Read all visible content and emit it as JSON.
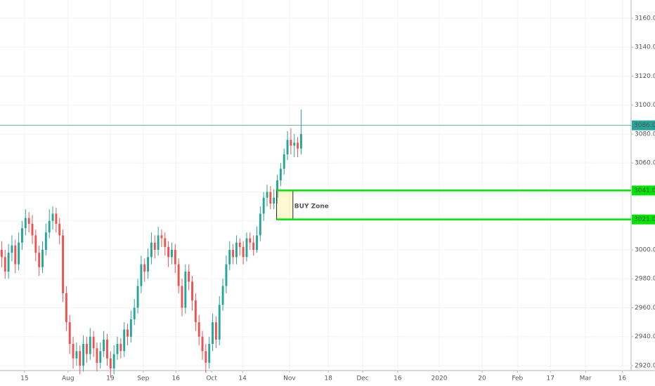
{
  "chart_data": {
    "type": "candlestick",
    "x": [
      0,
      1,
      2,
      3,
      4,
      5,
      6,
      7,
      8,
      9,
      10,
      11,
      12,
      13,
      14,
      15,
      16,
      17,
      18,
      19,
      20,
      21,
      22,
      23,
      24,
      25,
      26,
      27,
      28,
      29,
      30,
      31,
      32,
      33,
      34,
      35,
      36,
      37,
      38,
      39,
      40,
      41,
      42,
      43,
      44,
      45,
      46,
      47,
      48,
      49,
      50,
      51,
      52,
      53,
      54,
      55,
      56,
      57,
      58,
      59,
      60,
      61,
      62,
      63,
      64,
      65,
      66,
      67,
      68,
      69,
      70,
      71,
      72,
      73,
      74,
      75,
      76,
      77,
      78,
      79,
      80,
      81,
      82,
      83,
      84,
      85,
      86,
      87,
      88
    ],
    "open": [
      3000,
      2995,
      2985,
      2998,
      3003,
      2990,
      3005,
      3015,
      3022,
      3018,
      3010,
      2998,
      2988,
      3000,
      3012,
      3020,
      3025,
      3018,
      3010,
      2970,
      2950,
      2935,
      2925,
      2930,
      2920,
      2935,
      2928,
      2940,
      2932,
      2922,
      2930,
      2938,
      2925,
      2918,
      2928,
      2935,
      2930,
      2945,
      2940,
      2952,
      2960,
      2975,
      2990,
      2985,
      2995,
      3005,
      3000,
      3010,
      3008,
      3002,
      2995,
      3000,
      2990,
      2975,
      2960,
      2985,
      2978,
      2965,
      2950,
      2940,
      2930,
      2922,
      2935,
      2950,
      2938,
      2962,
      2975,
      2990,
      3000,
      2995,
      3005,
      3002,
      2995,
      3008,
      3005,
      3000,
      3010,
      3025,
      3036,
      3040,
      3032,
      3036,
      3048,
      3056,
      3066,
      3076,
      3072,
      3074,
      3070
    ],
    "high": [
      3006,
      3000,
      3004,
      3010,
      3007,
      3012,
      3020,
      3028,
      3026,
      3024,
      3014,
      3003,
      3006,
      3018,
      3028,
      3030,
      3029,
      3022,
      3014,
      2975,
      2955,
      2940,
      2936,
      2934,
      2941,
      2940,
      2946,
      2944,
      2936,
      2936,
      2944,
      2942,
      2930,
      2934,
      2940,
      2939,
      2950,
      2949,
      2958,
      2966,
      2980,
      2996,
      2994,
      3001,
      3012,
      3010,
      3016,
      3014,
      3012,
      3006,
      3005,
      3004,
      2994,
      2980,
      2990,
      2990,
      2982,
      2970,
      2955,
      2944,
      2935,
      2940,
      2956,
      2954,
      2968,
      2980,
      2996,
      3006,
      3004,
      3010,
      3008,
      3006,
      3012,
      3012,
      3010,
      3016,
      3030,
      3040,
      3045,
      3044,
      3042,
      3052,
      3060,
      3070,
      3082,
      3084,
      3080,
      3078,
      3097
    ],
    "low": [
      2988,
      2980,
      2980,
      2992,
      2984,
      2986,
      3000,
      3010,
      3012,
      3004,
      2992,
      2982,
      2984,
      2996,
      3008,
      3014,
      3012,
      3004,
      2964,
      2944,
      2928,
      2918,
      2920,
      2914,
      2916,
      2922,
      2924,
      2926,
      2916,
      2918,
      2926,
      2920,
      2912,
      2914,
      2924,
      2925,
      2926,
      2934,
      2936,
      2948,
      2956,
      2970,
      2978,
      2980,
      2990,
      2994,
      2996,
      3002,
      2996,
      2988,
      2990,
      2984,
      2970,
      2954,
      2956,
      2972,
      2958,
      2944,
      2934,
      2924,
      2915,
      2918,
      2930,
      2932,
      2934,
      2958,
      2970,
      2986,
      2990,
      2990,
      2996,
      2990,
      2992,
      3000,
      2996,
      2998,
      3006,
      3020,
      3030,
      3028,
      3028,
      3032,
      3044,
      3052,
      3062,
      3066,
      3064,
      3064,
      3066
    ],
    "close": [
      2995,
      2985,
      2998,
      3003,
      2990,
      3005,
      3015,
      3022,
      3018,
      3010,
      2998,
      2988,
      3000,
      3012,
      3020,
      3025,
      3018,
      3010,
      2970,
      2950,
      2935,
      2925,
      2930,
      2920,
      2935,
      2928,
      2940,
      2932,
      2922,
      2930,
      2938,
      2925,
      2918,
      2928,
      2935,
      2930,
      2945,
      2940,
      2952,
      2960,
      2975,
      2990,
      2985,
      2995,
      3005,
      3000,
      3010,
      3008,
      3002,
      2995,
      3000,
      2990,
      2975,
      2960,
      2985,
      2978,
      2965,
      2950,
      2940,
      2930,
      2922,
      2935,
      2950,
      2938,
      2962,
      2975,
      2990,
      3000,
      2995,
      3005,
      3002,
      2995,
      3008,
      3005,
      3000,
      3010,
      3025,
      3036,
      3040,
      3032,
      3036,
      3048,
      3056,
      3066,
      3076,
      3072,
      3074,
      3070,
      3080
    ],
    "up_color": "#26a69a",
    "down_color": "#ef5350",
    "xlim": [
      -0.5,
      185
    ],
    "xticks": [
      {
        "value": 6.7,
        "label": "15"
      },
      {
        "value": 19.5,
        "label": "Aug"
      },
      {
        "value": 31.9,
        "label": "19"
      },
      {
        "value": 41.6,
        "label": "Sep"
      },
      {
        "value": 51.2,
        "label": "16"
      },
      {
        "value": 61.7,
        "label": "Oct"
      },
      {
        "value": 70.8,
        "label": "14"
      },
      {
        "value": 84.6,
        "label": "Nov"
      },
      {
        "value": 96,
        "label": "18"
      },
      {
        "value": 106.1,
        "label": "Dec"
      },
      {
        "value": 116.4,
        "label": "16"
      },
      {
        "value": 128.6,
        "label": "2020"
      },
      {
        "value": 141.2,
        "label": "20"
      },
      {
        "value": 151.6,
        "label": "Feb"
      },
      {
        "value": 161.3,
        "label": "17"
      },
      {
        "value": 171.6,
        "label": "Mar"
      },
      {
        "value": 182.4,
        "label": "16"
      }
    ],
    "ylim": [
      2916.6,
      3172.6
    ],
    "yticks": [
      {
        "value": 2920,
        "label": "2920.00"
      },
      {
        "value": 2940,
        "label": "2940.00"
      },
      {
        "value": 2960,
        "label": "2960.00"
      },
      {
        "value": 2980,
        "label": "2980.00"
      },
      {
        "value": 3000,
        "label": "3000.00"
      },
      {
        "value": 3020,
        "label": "3020.00"
      },
      {
        "value": 3040,
        "label": "3040.00"
      },
      {
        "value": 3060,
        "label": "3060.00"
      },
      {
        "value": 3080,
        "label": "3080.00"
      },
      {
        "value": 3100,
        "label": "3100.00"
      },
      {
        "value": 3120,
        "label": "3120.00"
      },
      {
        "value": 3140,
        "label": "3140.00"
      },
      {
        "value": 3160,
        "label": "3160.00"
      }
    ],
    "grid": true,
    "price_line": {
      "value": 3086,
      "label": "3086.00",
      "color": "#26a69a"
    },
    "zone": {
      "label": "BUY Zone",
      "color": "#00e600",
      "top": 3041,
      "top_label": "3041.00",
      "bottom": 3021,
      "bottom_label": "3021.00",
      "x_start": 80.8,
      "x_end": 85.6
    }
  }
}
